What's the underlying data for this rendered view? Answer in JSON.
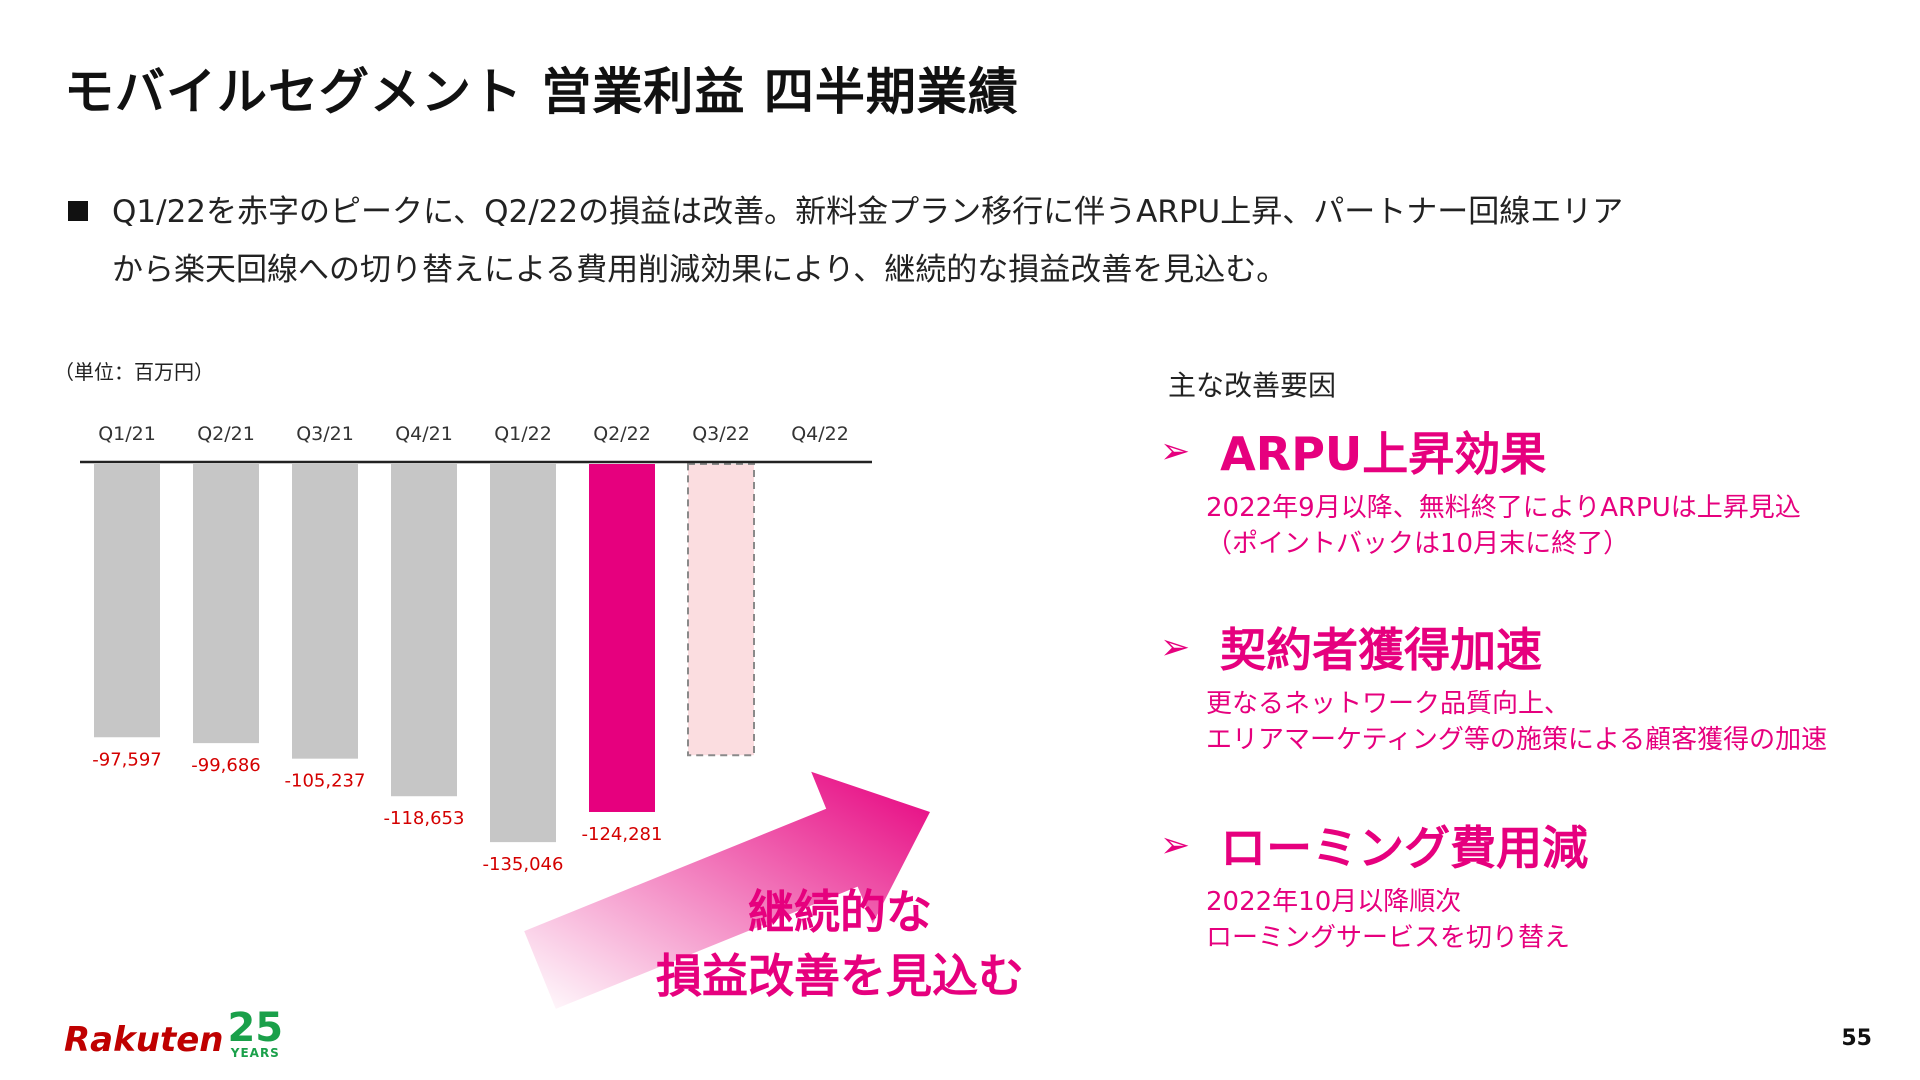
{
  "title": "モバイルセグメント 営業利益 四半期業績",
  "bullet": {
    "line1": "Q1/22を赤字のピークに、Q2/22の損益は改善。新料金プラン移行に伴うARPU上昇、パートナー回線エリア",
    "line2": "から楽天回線への切り替えによる費用削減効果により、継続的な損益改善を見込む。"
  },
  "unit_label": "（単位：百万円）",
  "chart_data": {
    "type": "bar",
    "categories": [
      "Q1/21",
      "Q2/21",
      "Q3/21",
      "Q4/21",
      "Q1/22",
      "Q2/22",
      "Q3/22",
      "Q4/22"
    ],
    "values": [
      -97597,
      -99686,
      -105237,
      -118653,
      -135046,
      -124281,
      null,
      null
    ],
    "value_labels": [
      "-97,597",
      "-99,686",
      "-105,237",
      "-118,653",
      "-135,046",
      "-124,281",
      "",
      ""
    ],
    "projected": {
      "category": "Q3/22",
      "style": "dashed-outline",
      "value": -104000
    },
    "highlight_category": "Q2/22",
    "colors": {
      "bar": "#c6c6c6",
      "highlight": "#e6007e",
      "projected_fill": "#fbdde0",
      "projected_stroke": "#8a8a8a",
      "label": "#d40000"
    },
    "xlabel": "",
    "ylabel": "",
    "ylim": [
      -140000,
      0
    ]
  },
  "callout": {
    "line1": "継続的な",
    "line2": "損益改善を見込む",
    "arrow_color": "#e6007e"
  },
  "reasons": {
    "heading": "主な改善要因",
    "bullet_glyph": "➢",
    "items": [
      {
        "title": "ARPU上昇効果",
        "line1": "2022年9月以降、無料終了によりARPUは上昇見込",
        "line2": "（ポイントバックは10月末に終了）"
      },
      {
        "title": "契約者獲得加速",
        "line1": "更なるネットワーク品質向上、",
        "line2": "エリアマーケティング等の施策による顧客獲得の加速"
      },
      {
        "title": "ローミング費用減",
        "line1": "2022年10月以降順次",
        "line2": "ローミングサービスを切り替え"
      }
    ]
  },
  "footer": {
    "logo_word": "Rakuten",
    "logo_number": "25",
    "logo_years": "YEARS",
    "page_number": "55"
  }
}
